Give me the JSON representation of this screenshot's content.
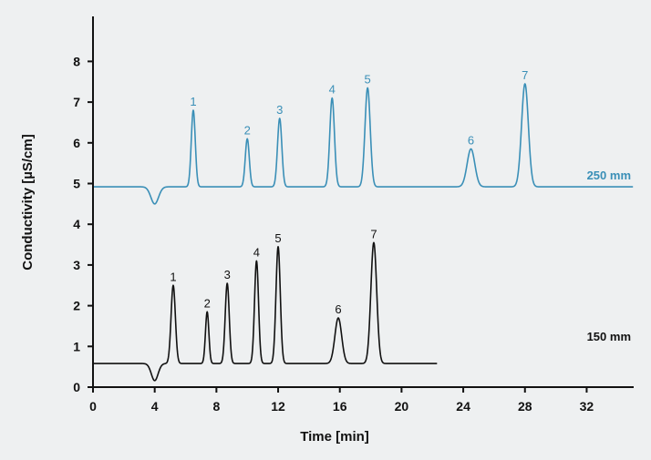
{
  "chart_data": {
    "type": "line",
    "xlabel": "Time [min]",
    "ylabel": "Conductivity [µS/cm]",
    "xlim": [
      0,
      35
    ],
    "ylim": [
      0,
      9
    ],
    "xticks": [
      0,
      4,
      8,
      12,
      16,
      20,
      24,
      28,
      32
    ],
    "yticks": [
      0,
      1,
      2,
      3,
      4,
      5,
      6,
      7,
      8
    ],
    "series": [
      {
        "name": "250 mm",
        "color": "#3a8fb7",
        "baseline": 4.92,
        "x_range": [
          0,
          35
        ],
        "dip": {
          "x": 4.0,
          "depth": 0.42,
          "width": 0.25
        },
        "peaks": [
          {
            "label": "1",
            "x": 6.5,
            "y": 6.8,
            "width": 0.13
          },
          {
            "label": "2",
            "x": 10.0,
            "y": 6.1,
            "width": 0.13
          },
          {
            "label": "3",
            "x": 12.1,
            "y": 6.6,
            "width": 0.14
          },
          {
            "label": "4",
            "x": 15.5,
            "y": 7.1,
            "width": 0.15
          },
          {
            "label": "5",
            "x": 17.8,
            "y": 7.35,
            "width": 0.17
          },
          {
            "label": "6",
            "x": 24.5,
            "y": 5.85,
            "width": 0.25
          },
          {
            "label": "7",
            "x": 28.0,
            "y": 7.45,
            "width": 0.22
          }
        ]
      },
      {
        "name": "150 mm",
        "color": "#111111",
        "baseline": 0.58,
        "x_range": [
          0,
          22.3
        ],
        "dip": {
          "x": 4.0,
          "depth": 0.42,
          "width": 0.22
        },
        "peaks": [
          {
            "label": "1",
            "x": 5.2,
            "y": 2.5,
            "width": 0.14
          },
          {
            "label": "2",
            "x": 7.4,
            "y": 1.85,
            "width": 0.11
          },
          {
            "label": "3",
            "x": 8.7,
            "y": 2.55,
            "width": 0.13
          },
          {
            "label": "4",
            "x": 10.6,
            "y": 3.1,
            "width": 0.13
          },
          {
            "label": "5",
            "x": 12.0,
            "y": 3.45,
            "width": 0.14
          },
          {
            "label": "6",
            "x": 15.9,
            "y": 1.7,
            "width": 0.22
          },
          {
            "label": "7",
            "x": 18.2,
            "y": 3.55,
            "width": 0.19
          }
        ]
      }
    ]
  }
}
